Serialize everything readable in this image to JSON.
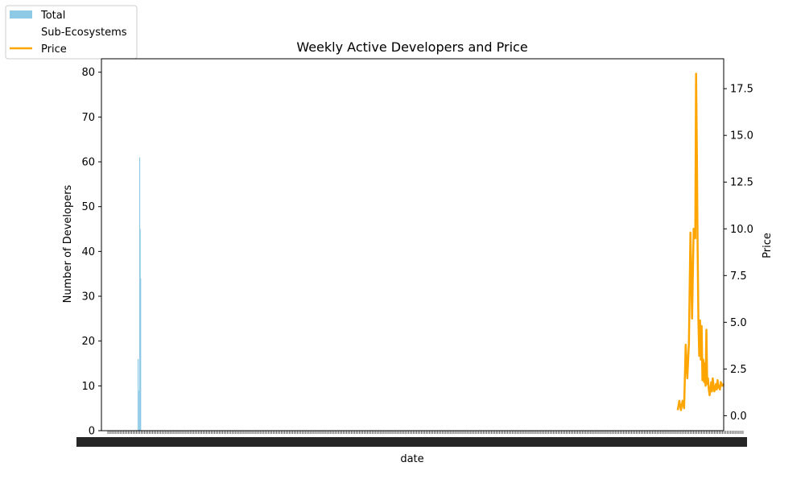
{
  "chart_data": {
    "type": "bar+line",
    "title": "Weekly Active Developers and Price",
    "xlabel": "date",
    "ylabel_left": "Number of Developers",
    "ylabel_right": "Price",
    "ylim_left": [
      0,
      83
    ],
    "ylim_right": [
      -0.8,
      19.1
    ],
    "yticks_left": [
      "0",
      "10",
      "20",
      "30",
      "40",
      "50",
      "60",
      "70",
      "80"
    ],
    "yticks_right": [
      "0.0",
      "2.5",
      "5.0",
      "7.5",
      "10.0",
      "12.5",
      "15.0",
      "17.5"
    ],
    "legend": {
      "placement": "top-left (outside plot)",
      "entries": [
        "Total",
        "Sub-Ecosystems",
        "Price"
      ]
    },
    "colors": {
      "total": "#8ecae6",
      "price": "#ffa500"
    },
    "x_tick_count": 400,
    "bars_total": [
      {
        "x_index": 19,
        "value": 16
      },
      {
        "x_index": 19.3,
        "value": 9
      },
      {
        "x_index": 20,
        "value": 61
      },
      {
        "x_index": 20.3,
        "value": 45
      },
      {
        "x_index": 20.6,
        "value": 34
      }
    ],
    "series": [
      {
        "name": "Price",
        "x_index": [
          358,
          359,
          360,
          361,
          362,
          363,
          364,
          365,
          366,
          367,
          368,
          369,
          369.5,
          370,
          370.5,
          371,
          371.5,
          372,
          372.5,
          373,
          373.5,
          374,
          374.5,
          375,
          375.5,
          376,
          376.5,
          377,
          377.5,
          378,
          378.5,
          379,
          379.5,
          380,
          380.5,
          381,
          381.5,
          382,
          382.5,
          383,
          383.5,
          384,
          384.5,
          385,
          386,
          387
        ],
        "values": [
          0.3,
          0.8,
          0.3,
          0.8,
          0.4,
          3.8,
          2.0,
          3.9,
          9.8,
          5.2,
          10.0,
          9.5,
          18.3,
          14.0,
          9.0,
          5.1,
          3.2,
          5.1,
          3.0,
          4.8,
          1.9,
          3.0,
          1.8,
          2.8,
          1.6,
          4.6,
          1.7,
          2.0,
          1.4,
          1.1,
          1.4,
          1.8,
          1.3,
          2.0,
          1.6,
          1.3,
          1.5,
          1.7,
          1.4,
          1.9,
          1.5,
          1.6,
          1.4,
          1.8,
          1.6,
          1.7
        ]
      }
    ]
  }
}
